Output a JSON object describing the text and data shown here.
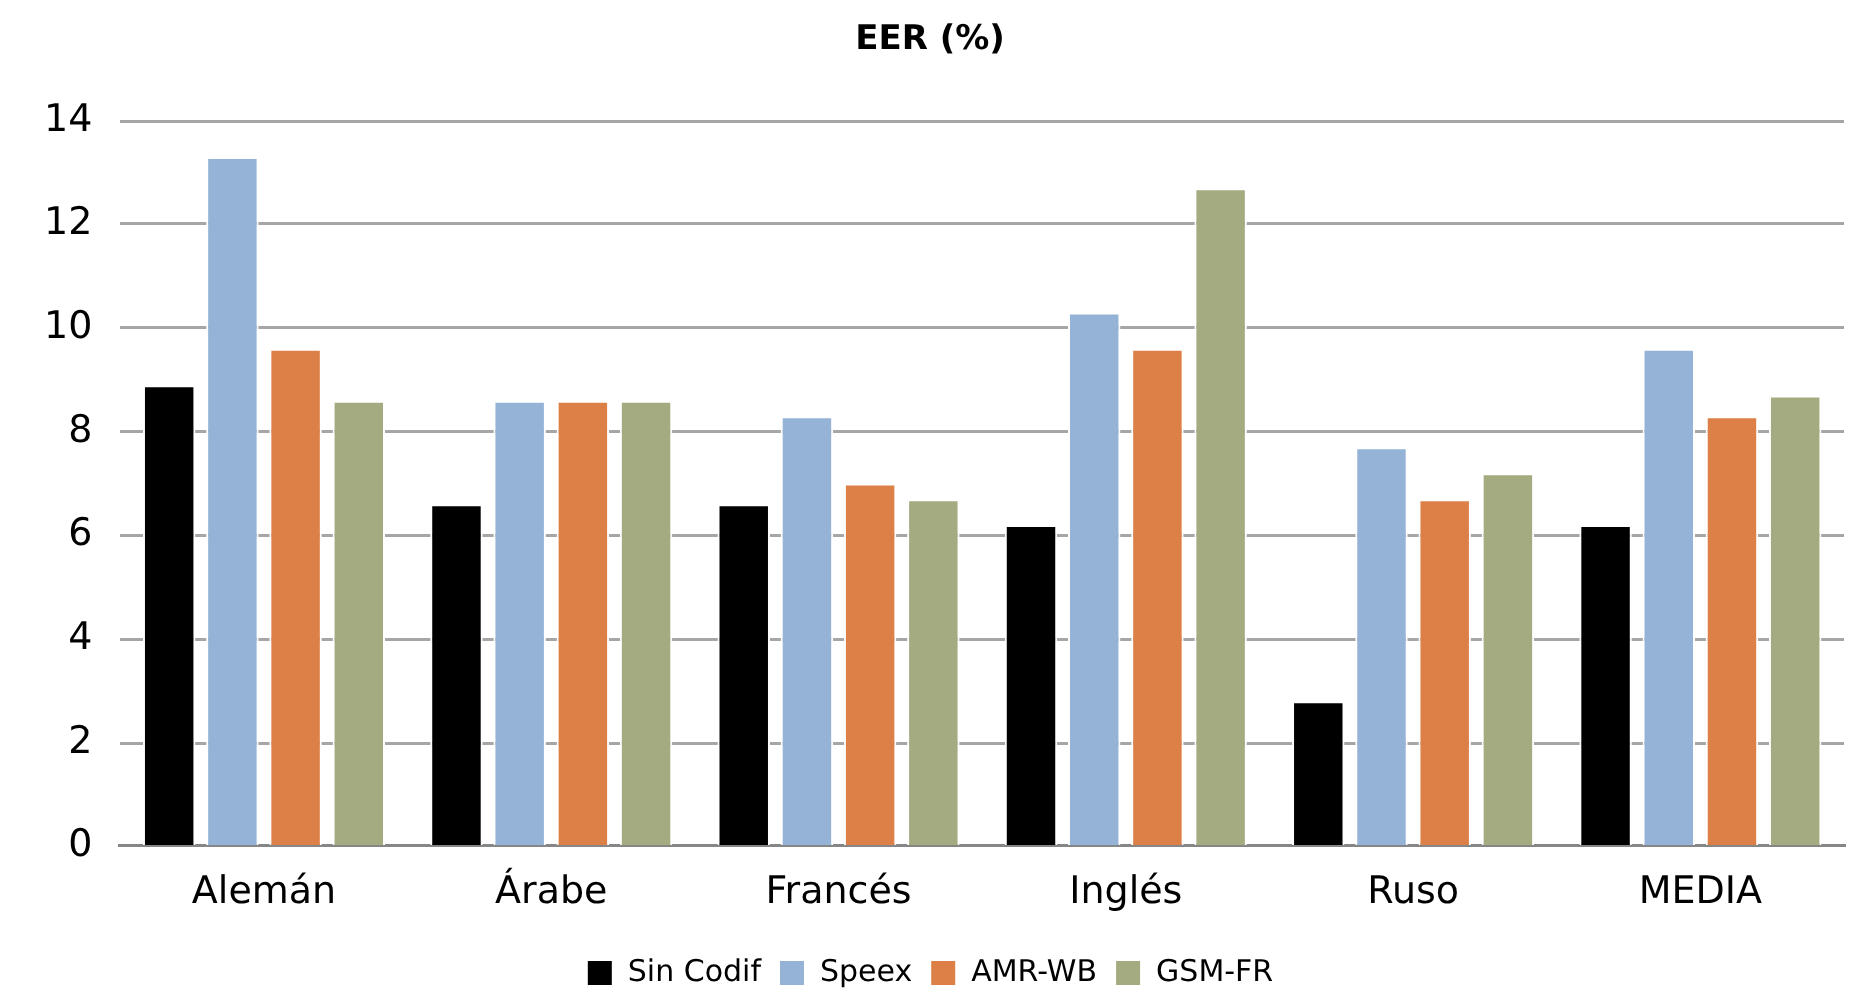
{
  "chart_data": {
    "type": "bar",
    "title": "EER (%)",
    "categories": [
      "Alemán",
      "Árabe",
      "Francés",
      "Inglés",
      "Ruso",
      "MEDIA"
    ],
    "series": [
      {
        "name": "Sin Codif",
        "color": "#000000",
        "values": [
          8.9,
          6.6,
          6.6,
          6.2,
          2.8,
          6.2
        ]
      },
      {
        "name": "Speex",
        "color": "#95b3d7",
        "values": [
          13.3,
          8.6,
          8.3,
          10.3,
          7.7,
          9.6
        ]
      },
      {
        "name": "AMR-WB",
        "color": "#dd8047",
        "values": [
          9.6,
          8.6,
          7.0,
          9.6,
          6.7,
          8.3
        ]
      },
      {
        "name": "GSM-FR",
        "color": "#a5ab81",
        "values": [
          8.6,
          8.6,
          6.7,
          12.7,
          7.2,
          8.7
        ]
      }
    ],
    "ylim": [
      0,
      14
    ],
    "yticks": [
      0,
      2,
      4,
      6,
      8,
      10,
      12,
      14
    ],
    "grid": "y",
    "legend": "bottom"
  }
}
